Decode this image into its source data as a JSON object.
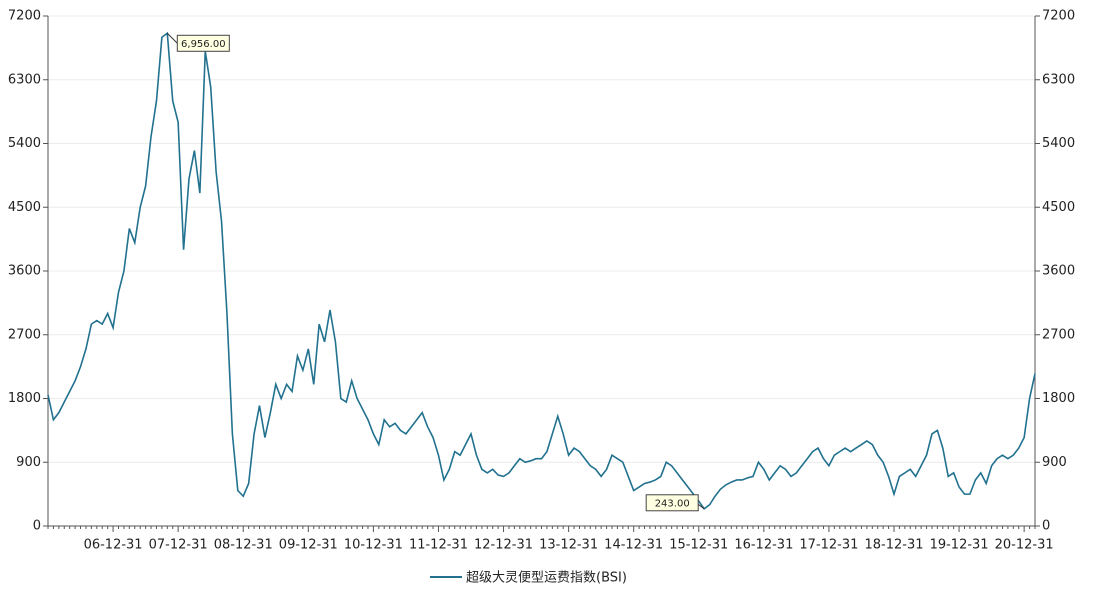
{
  "chart_data": {
    "type": "line",
    "categories": [
      null,
      null,
      null,
      null,
      null,
      null,
      null,
      null,
      null,
      null,
      null,
      null,
      "06-12-31",
      null,
      null,
      null,
      null,
      null,
      null,
      null,
      null,
      null,
      null,
      null,
      "07-12-31",
      null,
      null,
      null,
      null,
      null,
      null,
      null,
      null,
      null,
      null,
      null,
      "08-12-31",
      null,
      null,
      null,
      null,
      null,
      null,
      null,
      null,
      null,
      null,
      null,
      "09-12-31",
      null,
      null,
      null,
      null,
      null,
      null,
      null,
      null,
      null,
      null,
      null,
      "10-12-31",
      null,
      null,
      null,
      null,
      null,
      null,
      null,
      null,
      null,
      null,
      null,
      "11-12-31",
      null,
      null,
      null,
      null,
      null,
      null,
      null,
      null,
      null,
      null,
      null,
      "12-12-31",
      null,
      null,
      null,
      null,
      null,
      null,
      null,
      null,
      null,
      null,
      null,
      "13-12-31",
      null,
      null,
      null,
      null,
      null,
      null,
      null,
      null,
      null,
      null,
      null,
      "14-12-31",
      null,
      null,
      null,
      null,
      null,
      null,
      null,
      null,
      null,
      null,
      null,
      "15-12-31",
      null,
      null,
      null,
      null,
      null,
      null,
      null,
      null,
      null,
      null,
      null,
      "16-12-31",
      null,
      null,
      null,
      null,
      null,
      null,
      null,
      null,
      null,
      null,
      null,
      "17-12-31",
      null,
      null,
      null,
      null,
      null,
      null,
      null,
      null,
      null,
      null,
      null,
      "18-12-31",
      null,
      null,
      null,
      null,
      null,
      null,
      null,
      null,
      null,
      null,
      null,
      "19-12-31",
      null,
      null,
      null,
      null,
      null,
      null,
      null,
      null,
      null,
      null,
      null,
      "20-12-31",
      null,
      null
    ],
    "series": [
      {
        "name": "超级大灵便型运费指数(BSI)",
        "color": "#21718f",
        "values": [
          1850,
          1500,
          1600,
          1750,
          1900,
          2050,
          2250,
          2500,
          2850,
          2900,
          2850,
          3000,
          2800,
          3300,
          3600,
          4200,
          4000,
          4500,
          4800,
          5500,
          6000,
          6900,
          6956,
          6000,
          5700,
          3900,
          4900,
          5300,
          4700,
          6700,
          6200,
          5000,
          4300,
          3000,
          1300,
          500,
          420,
          600,
          1300,
          1700,
          1250,
          1600,
          2000,
          1800,
          2000,
          1900,
          2400,
          2200,
          2500,
          2000,
          2850,
          2600,
          3050,
          2600,
          1800,
          1750,
          2050,
          1800,
          1650,
          1500,
          1300,
          1150,
          1500,
          1400,
          1450,
          1350,
          1300,
          1400,
          1500,
          1600,
          1400,
          1250,
          1000,
          650,
          800,
          1050,
          1000,
          1150,
          1300,
          1000,
          800,
          750,
          800,
          720,
          700,
          750,
          850,
          950,
          900,
          920,
          950,
          950,
          1050,
          1300,
          1550,
          1300,
          1000,
          1100,
          1050,
          950,
          850,
          800,
          700,
          800,
          1000,
          950,
          900,
          700,
          500,
          550,
          600,
          620,
          650,
          700,
          900,
          850,
          750,
          650,
          550,
          450,
          350,
          243,
          300,
          420,
          520,
          580,
          620,
          650,
          650,
          680,
          700,
          900,
          800,
          650,
          750,
          850,
          800,
          700,
          750,
          850,
          950,
          1050,
          1100,
          950,
          850,
          1000,
          1050,
          1100,
          1050,
          1100,
          1150,
          1200,
          1150,
          1000,
          900,
          700,
          450,
          700,
          750,
          800,
          700,
          850,
          1000,
          1300,
          1350,
          1100,
          700,
          750,
          550,
          450,
          450,
          650,
          750,
          600,
          850,
          950,
          1000,
          950,
          1000,
          1100,
          1250,
          1800,
          2150
        ],
        "value_labels": [
          null,
          null,
          null,
          null,
          null,
          null,
          null,
          null,
          null,
          null,
          null,
          null,
          null,
          null,
          null,
          null,
          null,
          null,
          null,
          null,
          null,
          null,
          "6,956.00",
          null,
          null,
          null,
          null,
          null,
          null,
          null,
          null,
          null,
          null,
          null,
          null,
          null,
          null,
          null,
          null,
          null,
          null,
          null,
          null,
          null,
          null,
          null,
          null,
          null,
          null,
          null,
          null,
          null,
          null,
          null,
          null,
          null,
          null,
          null,
          null,
          null,
          null,
          null,
          null,
          null,
          null,
          null,
          null,
          null,
          null,
          null,
          null,
          null,
          null,
          null,
          null,
          null,
          null,
          null,
          null,
          null,
          null,
          null,
          null,
          null,
          null,
          null,
          null,
          null,
          null,
          null,
          null,
          null,
          null,
          null,
          null,
          null,
          null,
          null,
          null,
          null,
          null,
          null,
          null,
          null,
          null,
          null,
          null,
          null,
          null,
          null,
          null,
          null,
          null,
          null,
          null,
          null,
          null,
          null,
          null,
          null,
          null,
          "243.00",
          null,
          null,
          null,
          null,
          null,
          null,
          null,
          null,
          null,
          null,
          null,
          null,
          null,
          null,
          null,
          null,
          null,
          null,
          null,
          null,
          null,
          null,
          null,
          null,
          null,
          null,
          null,
          null,
          null,
          null,
          null,
          null,
          null,
          null,
          null,
          null,
          null,
          null,
          null,
          null,
          null,
          null,
          null,
          null,
          null,
          null,
          null,
          null,
          null,
          null,
          null,
          null,
          null,
          null,
          null,
          null,
          null,
          null,
          null,
          null,
          null
        ]
      }
    ],
    "ylim": [
      0,
      7200
    ],
    "yticks": [
      0,
      900,
      1800,
      2700,
      3600,
      4500,
      5400,
      6300,
      7200
    ],
    "grid": true,
    "legend": "bottom"
  }
}
